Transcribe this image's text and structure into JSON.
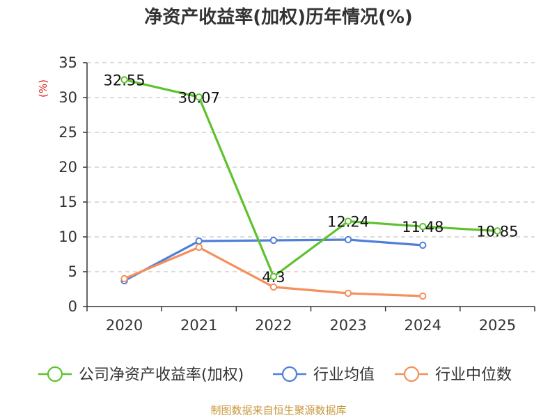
{
  "chart_data": {
    "type": "line",
    "title": "净资产收益率(加权)历年情况(%)",
    "ylabel": "(%)",
    "xlabel": "",
    "categories": [
      "2020",
      "2021",
      "2022",
      "2023",
      "2024",
      "2025"
    ],
    "ylim": [
      0,
      35
    ],
    "yticks": [
      0,
      5,
      10,
      15,
      20,
      25,
      30,
      35
    ],
    "grid": true,
    "legend_position": "bottom",
    "series": [
      {
        "name": "公司净资产收益率(加权)",
        "color": "#5ec22e",
        "values": [
          32.55,
          30.07,
          4.3,
          12.24,
          11.48,
          10.85
        ],
        "data_labels": [
          "32.55",
          "30.07",
          "4.3",
          "12.24",
          "11.48",
          "10.85"
        ]
      },
      {
        "name": "行业均值",
        "color": "#4f7fd8",
        "values": [
          3.7,
          9.4,
          9.5,
          9.6,
          8.8,
          null
        ]
      },
      {
        "name": "行业中位数",
        "color": "#f58f5c",
        "values": [
          4.0,
          8.5,
          2.8,
          1.9,
          1.5,
          null
        ]
      }
    ],
    "source": "制图数据来自恒生聚源数据库"
  }
}
